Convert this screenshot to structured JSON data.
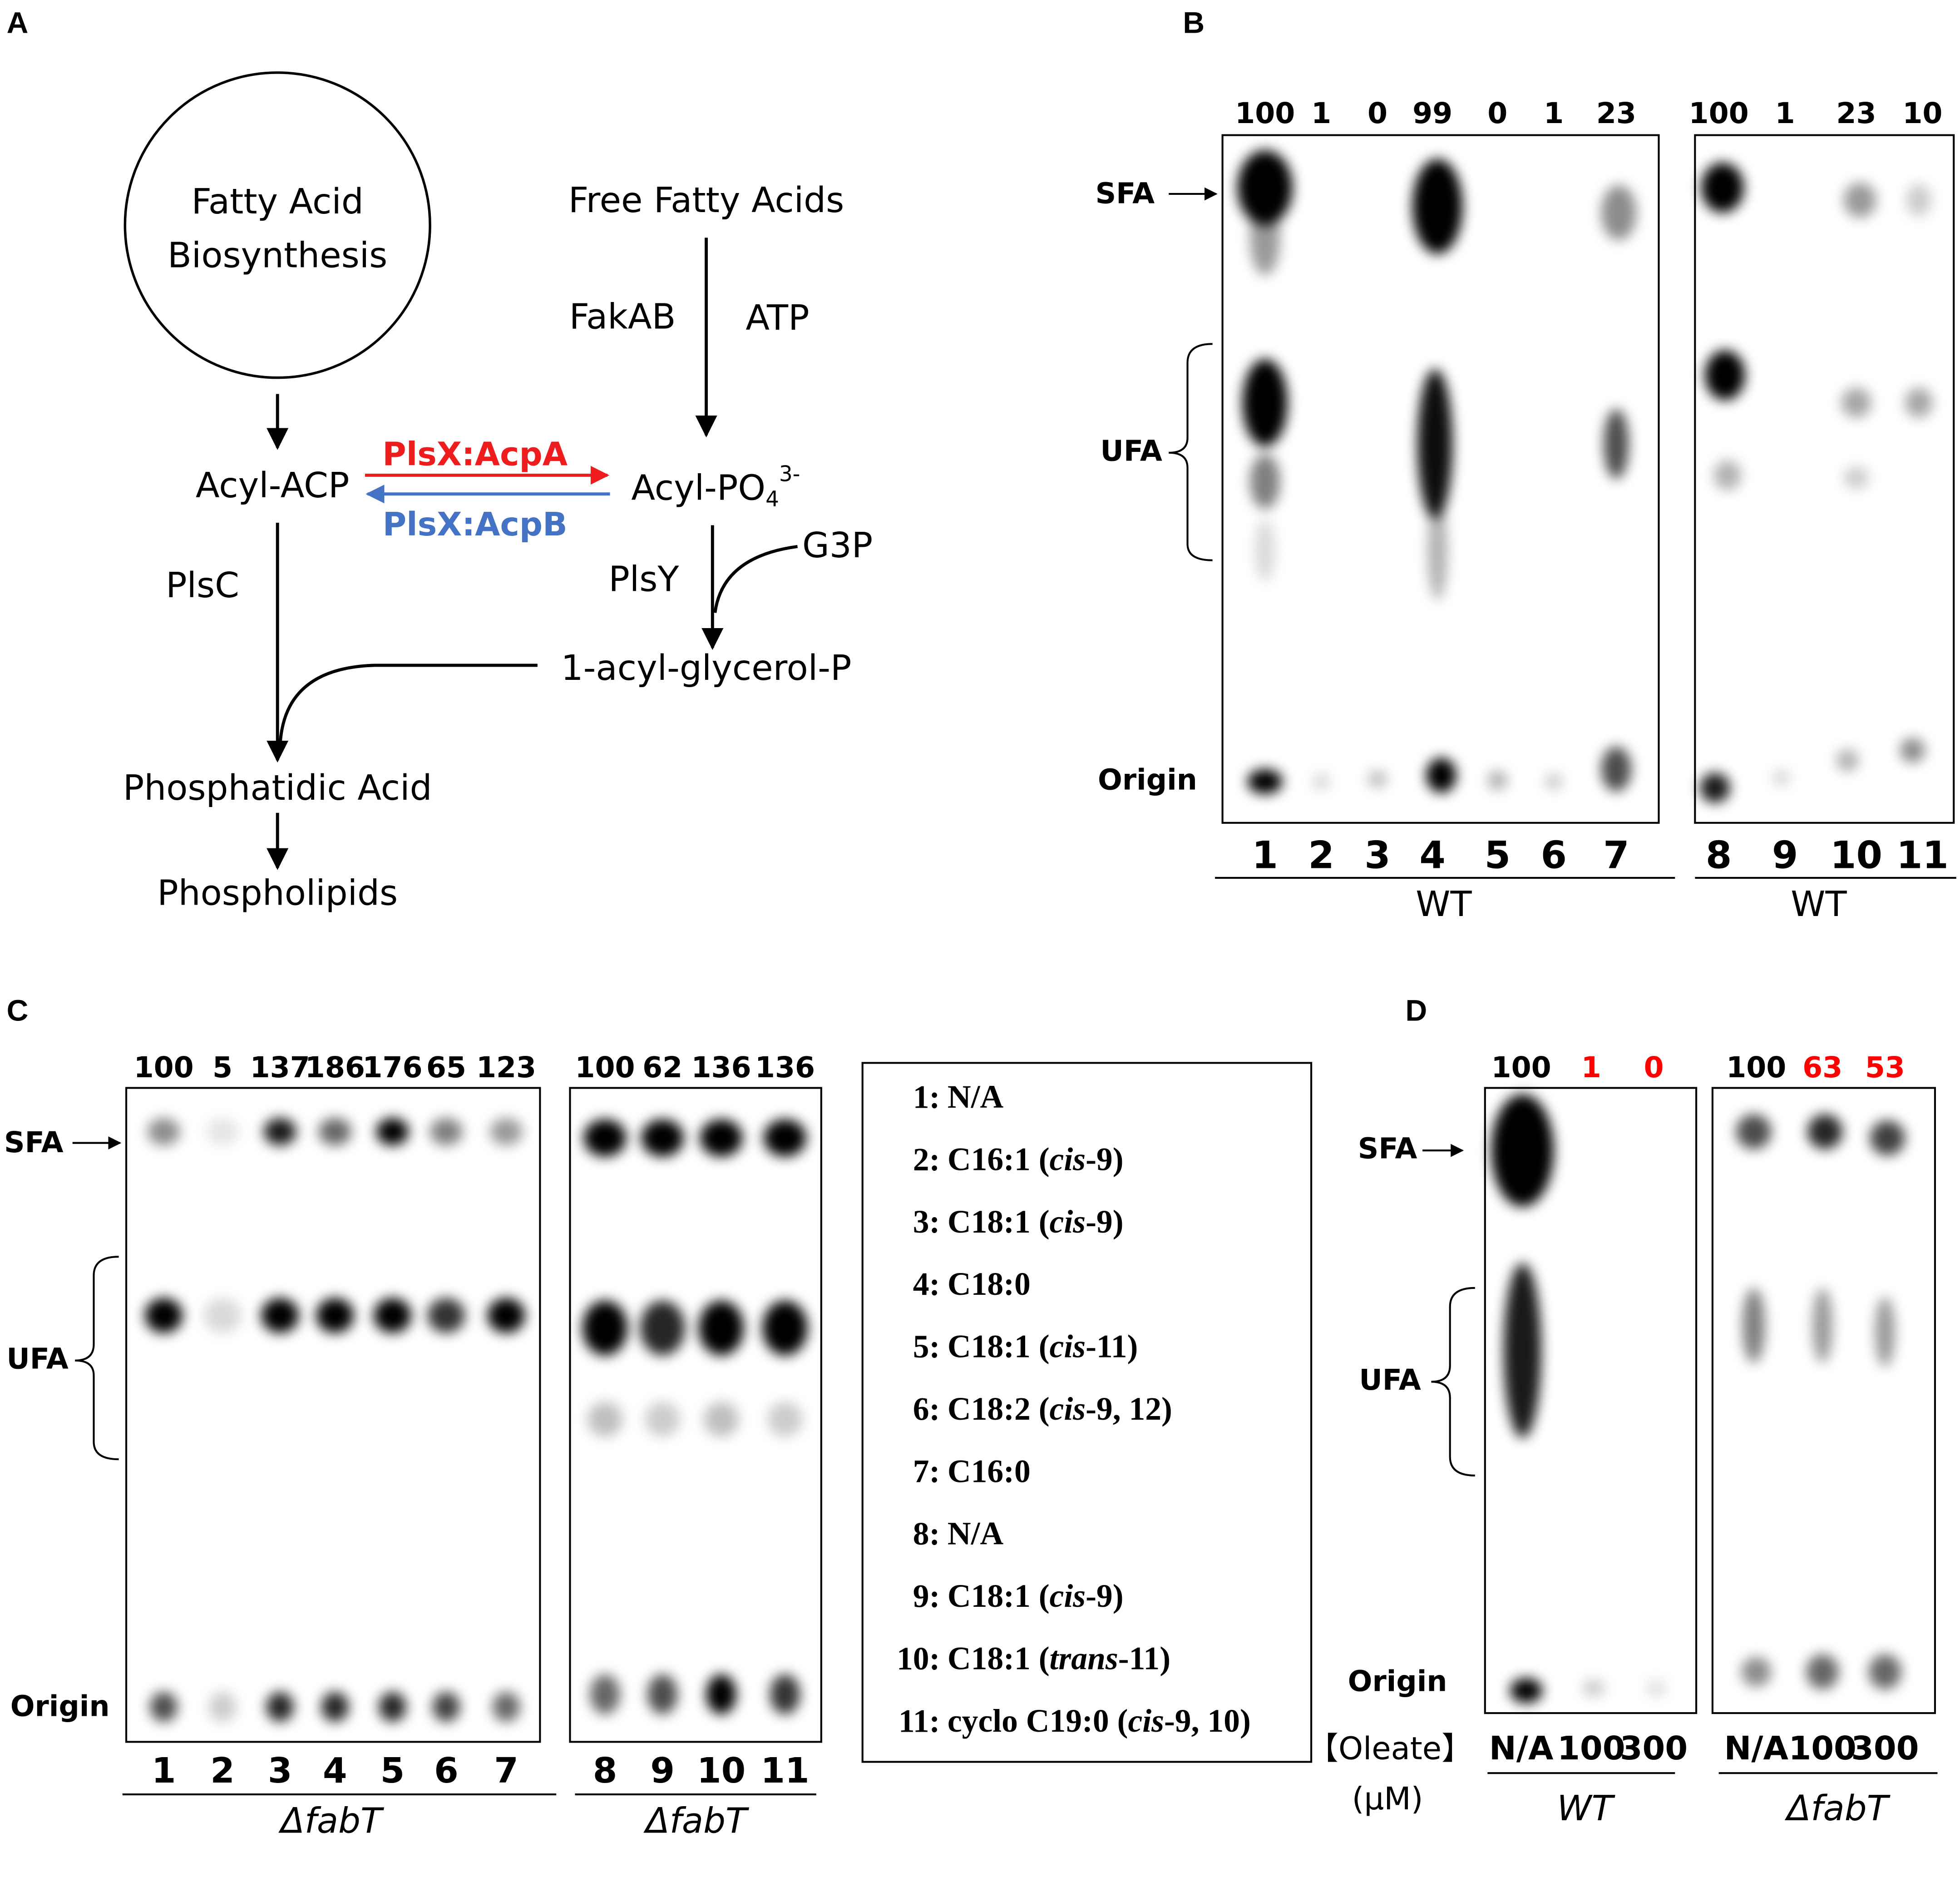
{
  "panel_a": {
    "label": "A",
    "biosynthesis": [
      "Fatty Acid",
      "Biosynthesis"
    ],
    "free_fatty_acids": "Free Fatty Acids",
    "fakab": "FakAB",
    "atp": "ATP",
    "acyl_acp": "Acyl-ACP",
    "acyl_po4": {
      "base": "Acyl-PO",
      "sub": "4",
      "sup": "3-"
    },
    "forward": "PlsX:AcpA",
    "reverse": "PlsX:AcpB",
    "plsc": "PlsC",
    "plsy": "PlsY",
    "g3p": "G3P",
    "acyl_glycerol_p": "1-acyl-glycerol-P",
    "phosphatidic_acid": "Phosphatidic Acid",
    "phospholipids": "Phospholipids"
  },
  "panel_b": {
    "label": "B",
    "markers": [
      "SFA",
      "UFA",
      "Origin"
    ],
    "gels": [
      {
        "intensities": [
          100,
          1,
          0,
          99,
          0,
          1,
          23
        ],
        "lanes": [
          1,
          2,
          3,
          4,
          5,
          6,
          7
        ],
        "strain": "WT"
      },
      {
        "intensities": [
          100,
          1,
          23,
          10
        ],
        "lanes": [
          8,
          9,
          10,
          11
        ],
        "strain": "WT"
      }
    ]
  },
  "panel_c": {
    "label": "C",
    "markers": [
      "SFA",
      "UFA",
      "Origin"
    ],
    "gels": [
      {
        "intensities": [
          100,
          5,
          137,
          186,
          176,
          65,
          123
        ],
        "lanes": [
          1,
          2,
          3,
          4,
          5,
          6,
          7
        ],
        "strain": "ΔfabT"
      },
      {
        "intensities": [
          100,
          62,
          136,
          136
        ],
        "lanes": [
          8,
          9,
          10,
          11
        ],
        "strain": "ΔfabT"
      }
    ],
    "legend": [
      {
        "number": "1:",
        "prefix": "N/A"
      },
      {
        "number": "2:",
        "prefix": "C16:1 (",
        "italic": "cis",
        "suffix": "-9)"
      },
      {
        "number": "3:",
        "prefix": "C18:1 (",
        "italic": "cis",
        "suffix": "-9)"
      },
      {
        "number": "4:",
        "prefix": "C18:0"
      },
      {
        "number": "5:",
        "prefix": "C18:1 (",
        "italic": "cis",
        "suffix": "-11)"
      },
      {
        "number": "6:",
        "prefix": "C18:2 (",
        "italic": "cis",
        "suffix": "-9, 12)"
      },
      {
        "number": "7:",
        "prefix": "C16:0"
      },
      {
        "number": "8:",
        "prefix": "N/A"
      },
      {
        "number": "9:",
        "prefix": "C18:1 (",
        "italic": "cis",
        "suffix": "-9)"
      },
      {
        "number": "10:",
        "prefix": "C18:1 (",
        "italic": "trans",
        "suffix": "-11)"
      },
      {
        "number": "11:",
        "prefix": "cyclo C19:0 (",
        "italic": "cis",
        "suffix": "-9, 10)"
      }
    ]
  },
  "panel_d": {
    "label": "D",
    "markers": [
      "SFA",
      "UFA",
      "Origin"
    ],
    "oleate_label": "【Oleate】",
    "unit_label": "(µM)",
    "gels": [
      {
        "intensities": [
          100,
          1,
          0
        ],
        "intensity_colors": [
          "#000000",
          "#ff0000",
          "#ff0000"
        ],
        "conditions": [
          "N/A",
          100,
          300
        ],
        "strain": "WT"
      },
      {
        "intensities": [
          100,
          63,
          53
        ],
        "intensity_colors": [
          "#000000",
          "#ff0000",
          "#ff0000"
        ],
        "conditions": [
          "N/A",
          100,
          300
        ],
        "strain": "ΔfabT"
      }
    ]
  }
}
